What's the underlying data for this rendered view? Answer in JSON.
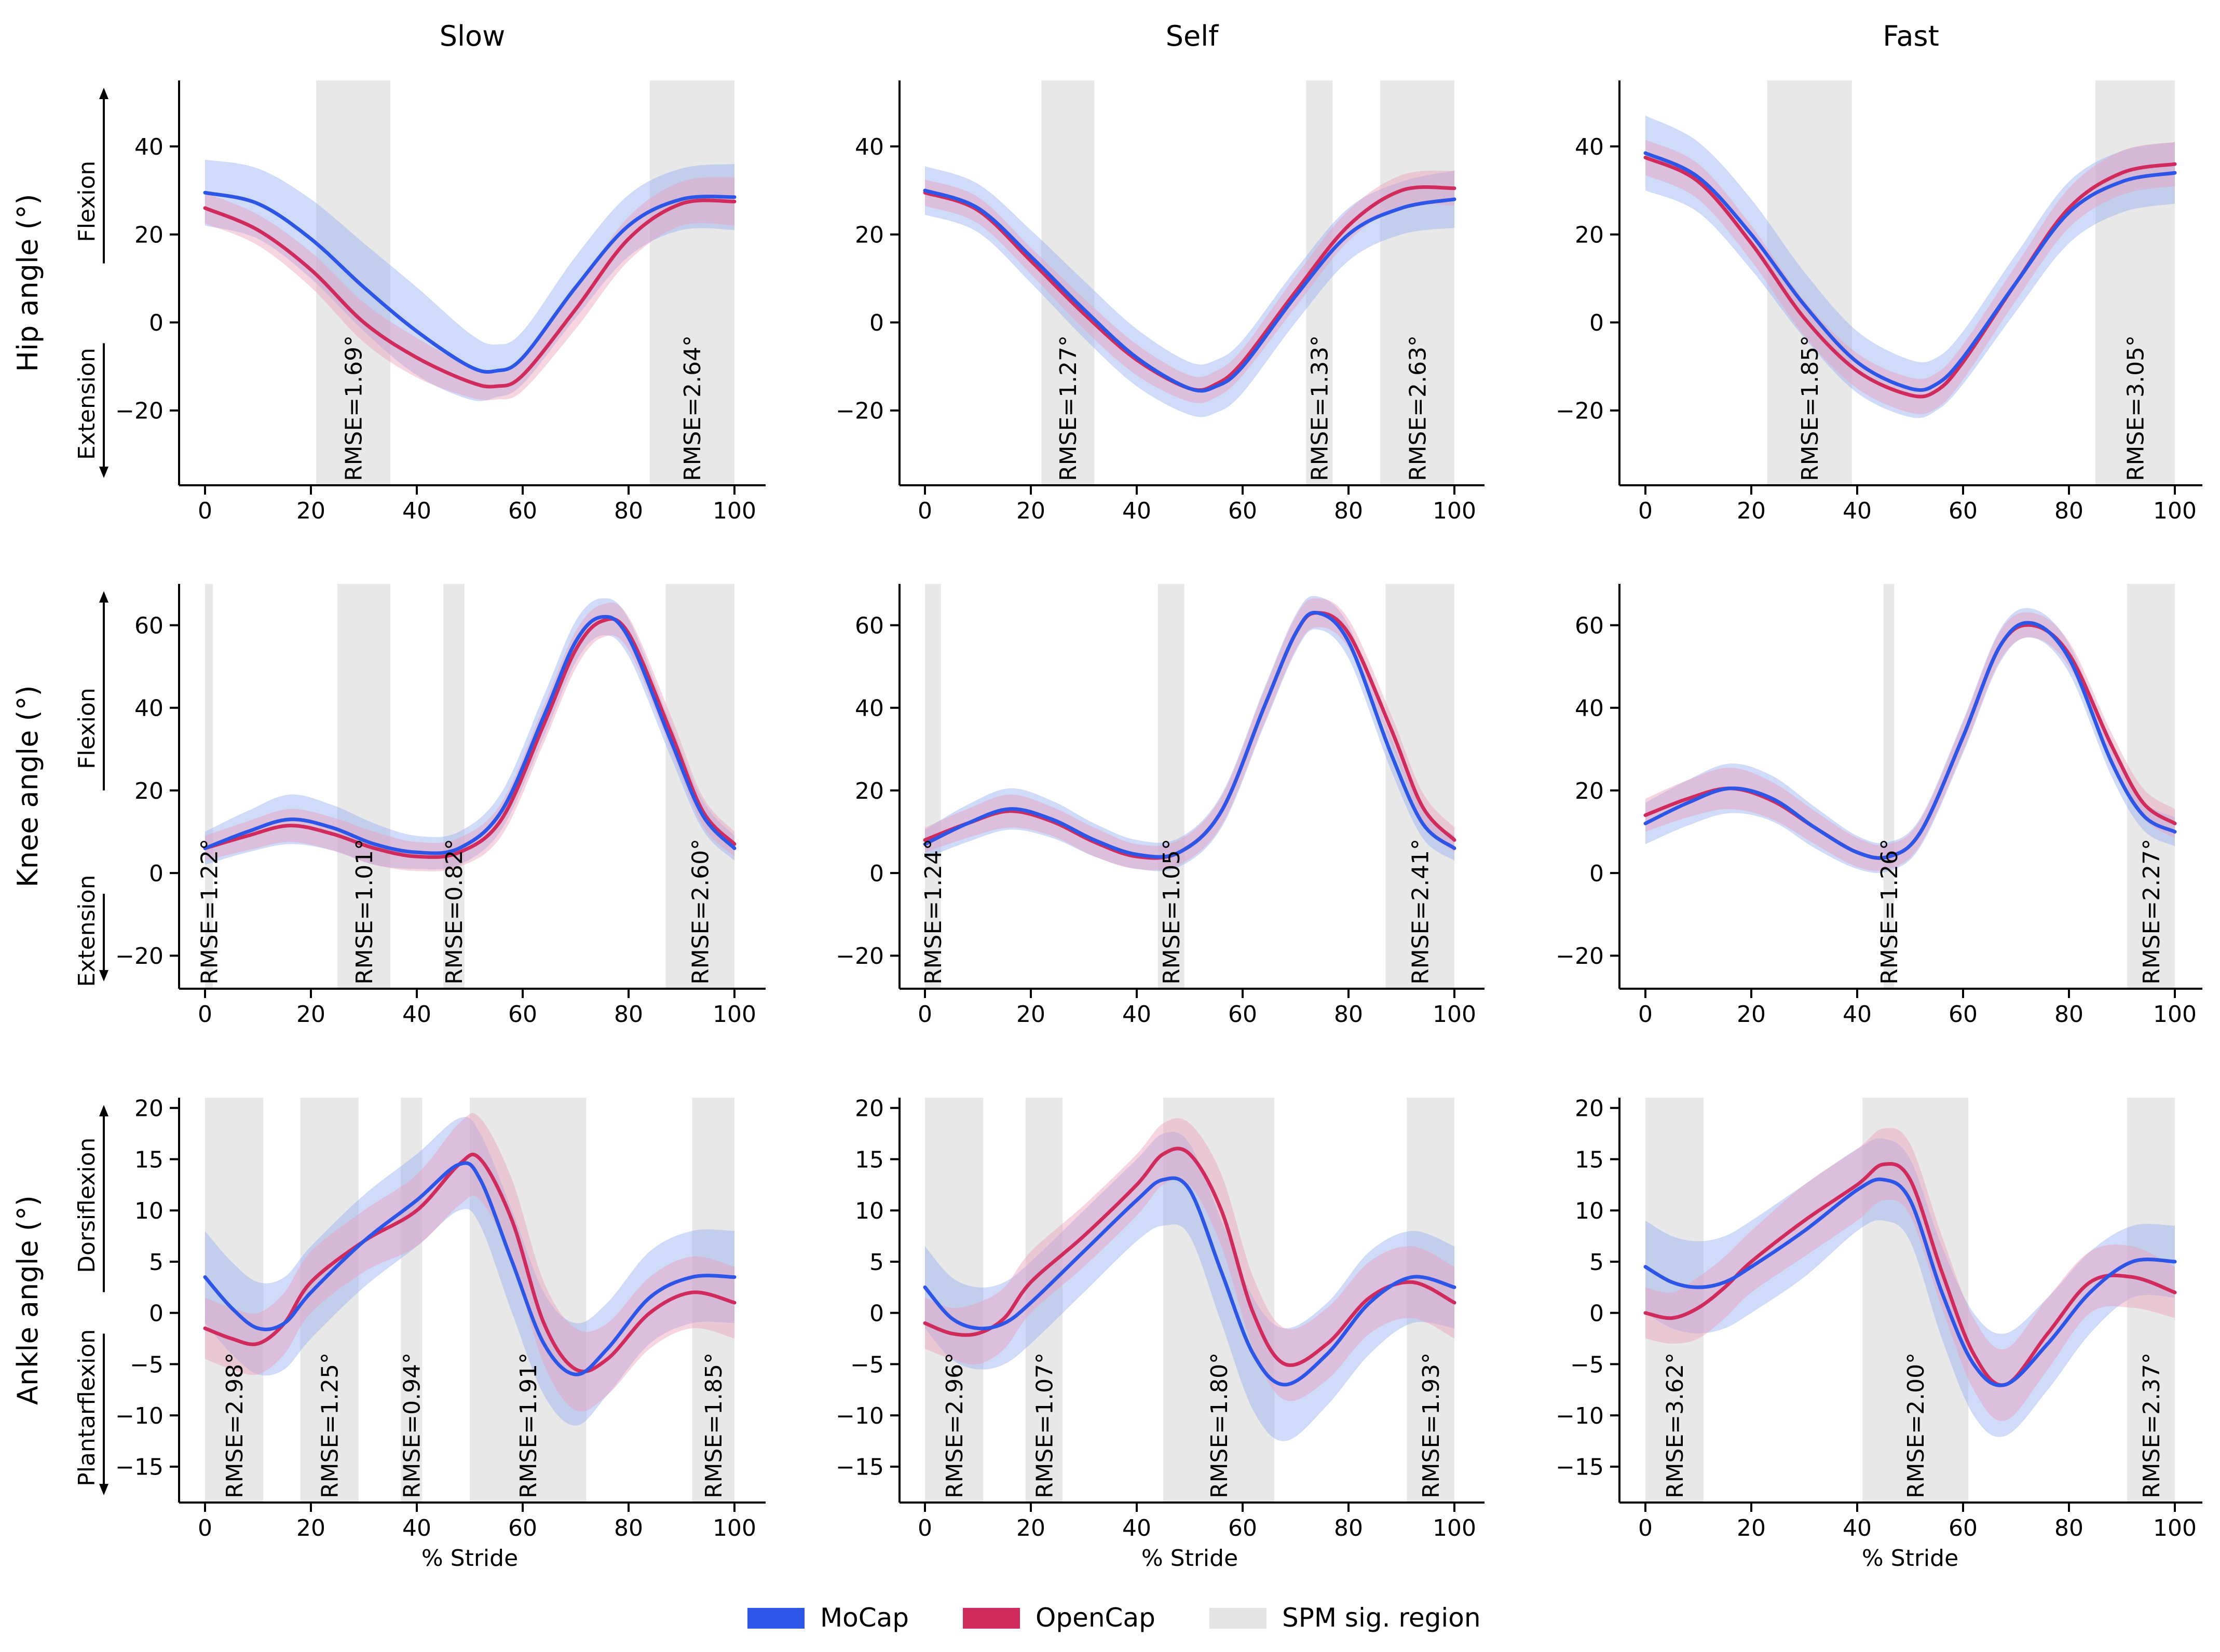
{
  "colors": {
    "mocap": "#2e56e6",
    "opencap": "#cf2b5c",
    "mocap_band": "#8fa8f0",
    "opencap_band": "#eb9bb4",
    "spm_region": "#e0e0e0",
    "axis": "#000000"
  },
  "columns": [
    "Slow",
    "Self",
    "Fast"
  ],
  "xlabel": "% Stride",
  "legend": [
    {
      "label": "MoCap",
      "color_key": "mocap"
    },
    {
      "label": "OpenCap",
      "color_key": "opencap"
    },
    {
      "label": "SPM sig. region",
      "color_key": "spm_region"
    }
  ],
  "chart_data": {
    "type": "line",
    "x_range": [
      0,
      100
    ],
    "xticks": [
      0,
      20,
      40,
      60,
      80,
      100
    ],
    "rows": [
      {
        "joint": "hip",
        "ylabel": "Hip angle (°)",
        "pos_label": "Flexion",
        "neg_label": "Extension",
        "ylim": [
          -37,
          55
        ],
        "yticks": [
          -20,
          0,
          20,
          40
        ],
        "panels": [
          {
            "x": [
              0,
              10,
              20,
              30,
              40,
              50,
              55,
              60,
              70,
              80,
              90,
              100
            ],
            "mocap": [
              29.5,
              27,
              19,
              8,
              -2,
              -10,
              -11,
              -8,
              8,
              22,
              28,
              28.5
            ],
            "opencap": [
              26,
              21,
              12,
              0,
              -8,
              -13.5,
              -14.5,
              -12,
              3,
              19,
              27,
              27.5
            ],
            "mocap_sd": [
              7.5,
              8,
              9,
              10,
              10,
              7.5,
              6,
              6,
              7,
              7,
              7,
              7.5
            ],
            "opencap_sd": [
              3.5,
              3.5,
              4,
              4.5,
              4.5,
              3.5,
              3,
              3.5,
              4.5,
              5,
              5,
              5.5
            ],
            "spm": [
              {
                "start": 21,
                "end": 35,
                "rmse": "RMSE=1.69°"
              },
              {
                "start": 84,
                "end": 100,
                "rmse": "RMSE=2.64°"
              }
            ]
          },
          {
            "x": [
              0,
              10,
              20,
              30,
              40,
              50,
              55,
              60,
              70,
              80,
              90,
              100
            ],
            "mocap": [
              30,
              26,
              15,
              3,
              -8,
              -15,
              -14.5,
              -10,
              6,
              20,
              26,
              28
            ],
            "opencap": [
              29.5,
              25.5,
              14,
              2,
              -8.5,
              -15,
              -14,
              -9,
              7,
              22,
              30,
              30.5
            ],
            "mocap_sd": [
              5.5,
              5.5,
              6,
              6.5,
              6.5,
              6,
              6,
              6,
              6,
              6,
              6,
              6.5
            ],
            "opencap_sd": [
              3,
              3,
              3,
              3.5,
              3.5,
              3,
              3,
              3,
              3.5,
              3.5,
              3.5,
              4
            ],
            "spm": [
              {
                "start": 22,
                "end": 32,
                "rmse": "RMSE=1.27°"
              },
              {
                "start": 72,
                "end": 77,
                "rmse": "RMSE=1.33°"
              },
              {
                "start": 86,
                "end": 100,
                "rmse": "RMSE=2.63°"
              }
            ]
          },
          {
            "x": [
              0,
              10,
              20,
              30,
              40,
              50,
              55,
              60,
              70,
              80,
              90,
              100
            ],
            "mocap": [
              38.5,
              33,
              20,
              4,
              -9,
              -15,
              -14,
              -8,
              9,
              25,
              32,
              34
            ],
            "opencap": [
              37.5,
              32,
              18,
              1,
              -11,
              -16.5,
              -15.5,
              -9,
              9,
              26,
              34,
              36
            ],
            "mocap_sd": [
              8.5,
              8,
              8,
              7.5,
              7,
              6.5,
              6,
              6,
              6.5,
              7,
              7,
              7
            ],
            "opencap_sd": [
              4,
              4,
              4,
              4,
              4,
              4,
              4,
              4,
              4,
              4.5,
              5,
              5
            ],
            "spm": [
              {
                "start": 23,
                "end": 39,
                "rmse": "RMSE=1.85°"
              },
              {
                "start": 85,
                "end": 100,
                "rmse": "RMSE=3.05°"
              }
            ]
          }
        ]
      },
      {
        "joint": "knee",
        "ylabel": "Knee angle (°)",
        "pos_label": "Flexion",
        "neg_label": "Extension",
        "ylim": [
          -28,
          70
        ],
        "yticks": [
          -20,
          0,
          20,
          40,
          60
        ],
        "panels": [
          {
            "x": [
              0,
              8,
              16,
              24,
              32,
              40,
              48,
              56,
              64,
              70,
              75,
              80,
              88,
              94,
              100
            ],
            "mocap": [
              6,
              10,
              13,
              11,
              7,
              5,
              6,
              15,
              38,
              56,
              62,
              57,
              32,
              14,
              6
            ],
            "opencap": [
              6,
              9,
              11.5,
              9.5,
              6,
              4,
              5,
              13,
              36,
              54,
              61,
              58,
              34,
              15,
              7
            ],
            "mocap_sd": [
              4,
              5,
              6,
              5.5,
              5,
              4,
              4,
              4.5,
              5,
              5,
              4.5,
              4.5,
              4,
              3.5,
              3
            ],
            "opencap_sd": [
              3,
              3.5,
              4,
              4,
              4,
              3.5,
              3.5,
              4,
              4.5,
              4.5,
              4,
              4,
              4,
              3.5,
              3
            ],
            "spm": [
              {
                "start": 0,
                "end": 1.5,
                "rmse": "RMSE=1.22°"
              },
              {
                "start": 25,
                "end": 35,
                "rmse": "RMSE=1.01°"
              },
              {
                "start": 45,
                "end": 49,
                "rmse": "RMSE=0.82°"
              },
              {
                "start": 87,
                "end": 100,
                "rmse": "RMSE=2.60°"
              }
            ]
          },
          {
            "x": [
              0,
              8,
              16,
              24,
              32,
              40,
              48,
              56,
              64,
              70,
              74,
              80,
              88,
              94,
              100
            ],
            "mocap": [
              7,
              12,
              15.5,
              13,
              8,
              4.5,
              5,
              15,
              40,
              58,
              63,
              56,
              29,
              12,
              6
            ],
            "opencap": [
              8,
              12,
              15,
              12.5,
              7.5,
              4,
              5,
              15,
              40,
              58,
              63,
              58,
              35,
              16,
              8
            ],
            "mocap_sd": [
              3.5,
              4.5,
              5,
              4.5,
              4,
              3.5,
              3.5,
              4,
              4.5,
              4.5,
              4,
              4,
              4,
              3.5,
              3
            ],
            "opencap_sd": [
              3,
              3.5,
              4,
              3.5,
              3.5,
              3,
              3,
              3.5,
              4,
              4,
              3.5,
              3.5,
              3.5,
              3.5,
              3
            ],
            "spm": [
              {
                "start": 0,
                "end": 3,
                "rmse": "RMSE=1.24°"
              },
              {
                "start": 44,
                "end": 49,
                "rmse": "RMSE=1.05°"
              },
              {
                "start": 87,
                "end": 100,
                "rmse": "RMSE=2.41°"
              }
            ]
          },
          {
            "x": [
              0,
              8,
              16,
              24,
              32,
              40,
              46,
              52,
              60,
              67,
              73,
              80,
              88,
              94,
              100
            ],
            "mocap": [
              12,
              17,
              20.5,
              18,
              11,
              5,
              4,
              10,
              33,
              55,
              60.5,
              52,
              27,
              14,
              10
            ],
            "opencap": [
              14,
              18,
              20.5,
              17.5,
              11,
              5,
              4,
              10,
              33,
              55,
              60,
              53,
              31,
              17,
              12
            ],
            "mocap_sd": [
              5,
              5.5,
              6,
              5.5,
              5,
              4,
              3.5,
              3.5,
              4,
              4,
              3.5,
              3.5,
              3.5,
              3.5,
              3.5
            ],
            "opencap_sd": [
              4,
              4.5,
              5,
              4.5,
              4,
              3.5,
              3,
              3,
              3.5,
              3.5,
              3,
              3,
              3,
              3.5,
              3.5
            ],
            "spm": [
              {
                "start": 45,
                "end": 47,
                "rmse": "RMSE=1.26°"
              },
              {
                "start": 91,
                "end": 100,
                "rmse": "RMSE=2.27°"
              }
            ]
          }
        ]
      },
      {
        "joint": "ankle",
        "ylabel": "Ankle angle (°)",
        "pos_label": "Dorsiflexion",
        "neg_label": "Plantarflexion",
        "ylim": [
          -18.5,
          21
        ],
        "yticks": [
          -15,
          -10,
          -5,
          0,
          5,
          10,
          15,
          20
        ],
        "panels": [
          {
            "x": [
              0,
              5,
              10,
              15,
              20,
              30,
              40,
              48,
              52,
              58,
              64,
              70,
              76,
              84,
              92,
              100
            ],
            "mocap": [
              3.5,
              0.5,
              -1.5,
              -1,
              2,
              7,
              11,
              14.5,
              13,
              5,
              -3,
              -6,
              -3.5,
              1.5,
              3.5,
              3.5
            ],
            "opencap": [
              -1.5,
              -2.5,
              -3,
              -1,
              3,
              7,
              10,
              14.5,
              15,
              9,
              -1,
              -5.5,
              -4.5,
              0,
              2,
              1
            ],
            "mocap_sd": [
              4.5,
              4.5,
              4.5,
              4.5,
              4.5,
              4.5,
              4.5,
              4.5,
              4.5,
              5,
              5,
              5,
              4.5,
              4.5,
              4.5,
              4.5
            ],
            "opencap_sd": [
              3,
              3,
              3,
              3,
              3,
              3,
              3.5,
              4,
              4,
              4,
              4,
              4,
              3.5,
              3.5,
              3.5,
              3.5
            ],
            "spm": [
              {
                "start": 0,
                "end": 11,
                "rmse": "RMSE=2.98°"
              },
              {
                "start": 18,
                "end": 29,
                "rmse": "RMSE=1.25°"
              },
              {
                "start": 37,
                "end": 41,
                "rmse": "RMSE=0.94°"
              },
              {
                "start": 50,
                "end": 72,
                "rmse": "RMSE=1.91°"
              },
              {
                "start": 92,
                "end": 100,
                "rmse": "RMSE=1.85°"
              }
            ]
          },
          {
            "x": [
              0,
              5,
              10,
              15,
              20,
              30,
              40,
              45,
              50,
              56,
              62,
              68,
              76,
              84,
              92,
              100
            ],
            "mocap": [
              2.5,
              -0.5,
              -1.5,
              -1,
              1,
              6,
              11,
              13,
              12,
              4,
              -4,
              -7,
              -4,
              1,
              3.5,
              2.5
            ],
            "opencap": [
              -1,
              -2,
              -2,
              -0.5,
              3,
              7.5,
              12.5,
              15.5,
              15.5,
              10,
              0,
              -5,
              -3,
              1.5,
              3,
              1
            ],
            "mocap_sd": [
              4,
              4,
              4,
              4,
              4,
              4,
              4,
              4.5,
              4.5,
              5,
              5.5,
              5.5,
              5,
              5,
              4.5,
              4
            ],
            "opencap_sd": [
              2.5,
              2.5,
              3,
              3,
              3,
              3,
              3,
              3,
              3,
              3.5,
              3.5,
              3.5,
              3.5,
              3.5,
              3.5,
              3.5
            ],
            "spm": [
              {
                "start": 0,
                "end": 11,
                "rmse": "RMSE=2.96°"
              },
              {
                "start": 19,
                "end": 26,
                "rmse": "RMSE=1.07°"
              },
              {
                "start": 45,
                "end": 66,
                "rmse": "RMSE=1.80°"
              },
              {
                "start": 91,
                "end": 100,
                "rmse": "RMSE=1.93°"
              }
            ]
          },
          {
            "x": [
              0,
              5,
              10,
              15,
              20,
              30,
              40,
              45,
              50,
              56,
              62,
              68,
              76,
              84,
              92,
              100
            ],
            "mocap": [
              4.5,
              3,
              2.5,
              3,
              4.5,
              8,
              12,
              13,
              11,
              2,
              -5,
              -7,
              -3,
              2,
              5,
              5
            ],
            "opencap": [
              0,
              -0.5,
              0.5,
              2.5,
              5,
              9,
              12.5,
              14.5,
              13,
              4,
              -4,
              -7,
              -2,
              3,
              3.5,
              2
            ],
            "mocap_sd": [
              4.5,
              4.5,
              4.5,
              4.5,
              4.5,
              4.5,
              4,
              4,
              4,
              4.5,
              5,
              5,
              4.5,
              4,
              3.5,
              3.5
            ],
            "opencap_sd": [
              2.5,
              2.5,
              3,
              3,
              3,
              3.5,
              3.5,
              3.5,
              3.5,
              3.5,
              3.5,
              3.5,
              3.5,
              3,
              3,
              2.5
            ],
            "spm": [
              {
                "start": 0,
                "end": 11,
                "rmse": "RMSE=3.62°"
              },
              {
                "start": 41,
                "end": 61,
                "rmse": "RMSE=2.00°"
              },
              {
                "start": 91,
                "end": 100,
                "rmse": "RMSE=2.37°"
              }
            ]
          }
        ]
      }
    ]
  }
}
